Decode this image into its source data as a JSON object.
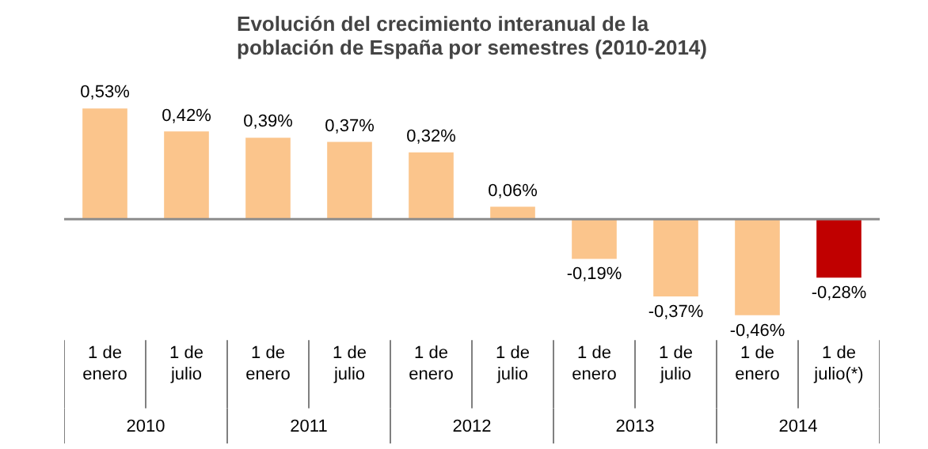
{
  "chart_data": {
    "type": "bar",
    "title": "Evolución del crecimiento interanual de la población de España por semestres (2010-2014)",
    "categories": [
      "1 de enero",
      "1 de julio",
      "1 de enero",
      "1 de julio",
      "1 de enero",
      "1 de julio",
      "1 de enero",
      "1 de julio",
      "1 de enero",
      "1 de julio(*)"
    ],
    "values": [
      0.53,
      0.42,
      0.39,
      0.37,
      0.32,
      0.06,
      -0.19,
      -0.37,
      -0.46,
      -0.28
    ],
    "colors": [
      "#fbc58c",
      "#fbc58c",
      "#fbc58c",
      "#fbc58c",
      "#fbc58c",
      "#fbc58c",
      "#fbc58c",
      "#fbc58c",
      "#fbc58c",
      "#c00000"
    ],
    "value_labels": [
      "0,53%",
      "0,42%",
      "0,39%",
      "0,37%",
      "0,32%",
      "0,06%",
      "-0,19%",
      "-0,37%",
      "-0,46%",
      "-0,28%"
    ],
    "annotations": [
      "2010",
      "2011",
      "2012",
      "2013",
      "2014"
    ]
  }
}
